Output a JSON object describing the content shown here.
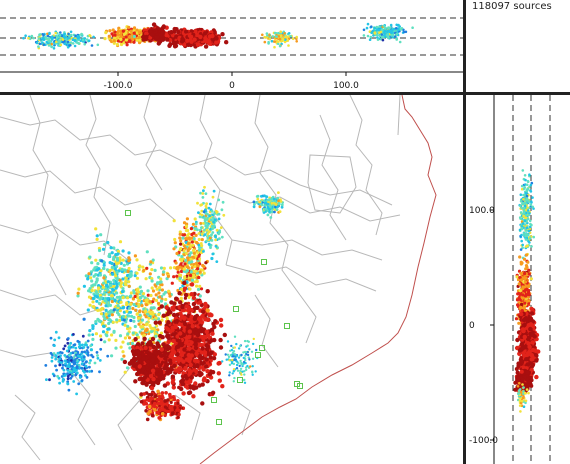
{
  "header": {
    "source_count": "118097 sources"
  },
  "top_plot": {
    "x_ticks": [
      {
        "value": -100,
        "label": "-100.0"
      },
      {
        "value": 0,
        "label": "0"
      },
      {
        "value": 100,
        "label": "100.0"
      }
    ]
  },
  "side_plot": {
    "y_ticks": [
      {
        "value": 100,
        "label": "100.0"
      },
      {
        "value": 0,
        "label": "0"
      },
      {
        "value": -100,
        "label": "-100.0"
      }
    ]
  },
  "colors": {
    "coast_line": "#c0504d",
    "county_line": "#b8b8b8",
    "scale": [
      "#1f2ea8",
      "#1f7fe0",
      "#22c4e6",
      "#5fe0c0",
      "#f2e23a",
      "#f79a1f",
      "#e2231a",
      "#a80f0f"
    ]
  }
}
